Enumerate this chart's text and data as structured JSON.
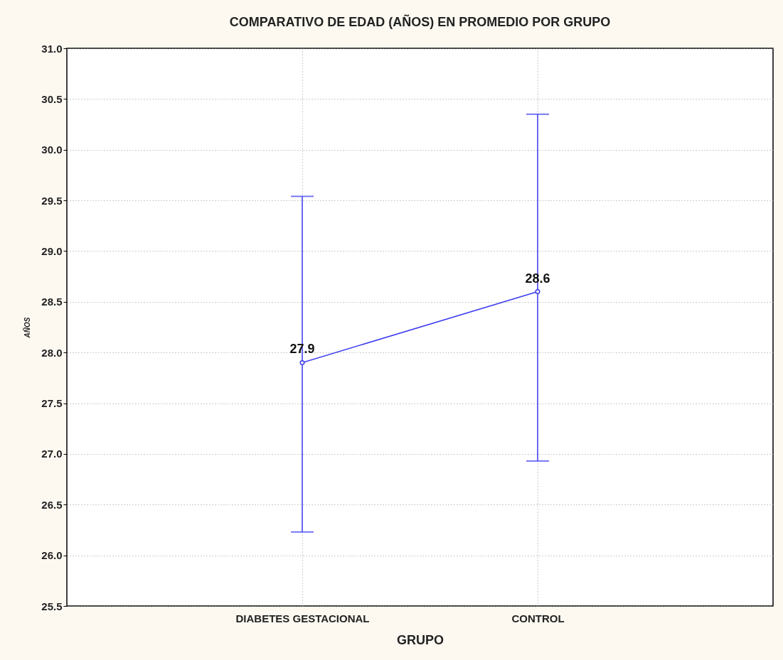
{
  "chart_data": {
    "type": "line",
    "title": "COMPARATIVO DE EDAD (AÑOS) EN PROMEDIO  POR GRUPO",
    "xlabel": "GRUPO",
    "ylabel": "AÑOS",
    "categories": [
      "DIABETES GESTACIONAL",
      "CONTROL"
    ],
    "values": [
      27.9,
      28.6
    ],
    "errors": [
      [
        26.23,
        29.54
      ],
      [
        26.93,
        30.35
      ]
    ],
    "color": "#3c3cf0",
    "ylim": [
      25.5,
      31.0
    ],
    "yticks": [
      {
        "value": 25.5,
        "label": "25.5"
      },
      {
        "value": 26,
        "label": "26.0"
      },
      {
        "value": 26.5,
        "label": "26.5"
      },
      {
        "value": 27,
        "label": "27.0"
      },
      {
        "value": 27.5,
        "label": "27.5"
      },
      {
        "value": 28,
        "label": "28.0"
      },
      {
        "value": 28.5,
        "label": "28.5"
      },
      {
        "value": 29,
        "label": "29.0"
      },
      {
        "value": 29.5,
        "label": "29.5"
      },
      {
        "value": 30,
        "label": "30.0"
      },
      {
        "value": 30.5,
        "label": "30.5"
      },
      {
        "value": 31,
        "label": "31.0"
      }
    ],
    "grid": true,
    "marker": "circle",
    "line_style": "solid",
    "data_labels": true
  }
}
